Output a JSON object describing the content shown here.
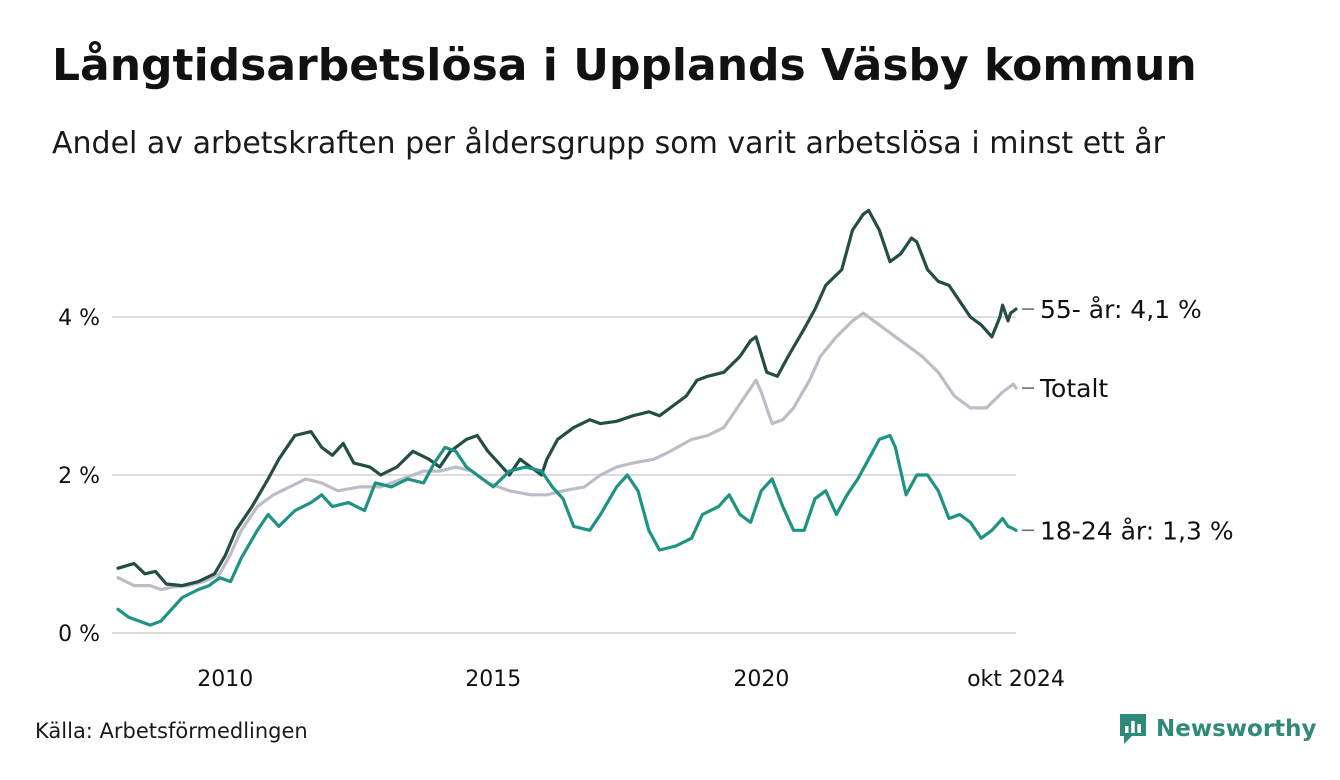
{
  "title": "Långtidsarbetslösa i Upplands Väsby kommun",
  "subtitle": "Andel av arbetskraften per åldersgrupp som varit arbetslösa i minst ett år",
  "source": "Källa: Arbetsförmedlingen",
  "brand": "Newsworthy",
  "colors": {
    "age55": "#234d45",
    "total": "#bdbcc8",
    "young": "#1e9384",
    "grid": "#dddddd",
    "brand": "#2f8a79"
  },
  "chart_data": {
    "type": "line",
    "title": "Långtidsarbetslösa i Upplands Väsby kommun",
    "xlabel": "",
    "ylabel": "",
    "ylim": [
      0,
      5.5
    ],
    "xlim": [
      2008.0,
      2024.75
    ],
    "y_ticks": [
      {
        "value": 0,
        "label": "0 %"
      },
      {
        "value": 2,
        "label": "2 %"
      },
      {
        "value": 4,
        "label": "4 %"
      }
    ],
    "x_ticks": [
      {
        "value": 2010,
        "label": "2010"
      },
      {
        "value": 2015,
        "label": "2015"
      },
      {
        "value": 2020,
        "label": "2020"
      },
      {
        "value": 2024.75,
        "label": "okt 2024"
      }
    ],
    "series": [
      {
        "name": "55- år",
        "label": "55- år: 4,1 %",
        "color_key": "age55",
        "points": [
          [
            2008.0,
            0.82
          ],
          [
            2008.3,
            0.88
          ],
          [
            2008.5,
            0.75
          ],
          [
            2008.7,
            0.78
          ],
          [
            2008.9,
            0.62
          ],
          [
            2009.2,
            0.6
          ],
          [
            2009.5,
            0.65
          ],
          [
            2009.8,
            0.75
          ],
          [
            2010.0,
            0.98
          ],
          [
            2010.2,
            1.3
          ],
          [
            2010.5,
            1.6
          ],
          [
            2010.8,
            1.95
          ],
          [
            2011.0,
            2.2
          ],
          [
            2011.3,
            2.5
          ],
          [
            2011.6,
            2.55
          ],
          [
            2011.8,
            2.35
          ],
          [
            2012.0,
            2.25
          ],
          [
            2012.2,
            2.4
          ],
          [
            2012.4,
            2.15
          ],
          [
            2012.7,
            2.1
          ],
          [
            2012.9,
            2.0
          ],
          [
            2013.2,
            2.1
          ],
          [
            2013.5,
            2.3
          ],
          [
            2013.8,
            2.2
          ],
          [
            2014.0,
            2.1
          ],
          [
            2014.2,
            2.3
          ],
          [
            2014.5,
            2.45
          ],
          [
            2014.7,
            2.5
          ],
          [
            2014.9,
            2.3
          ],
          [
            2015.1,
            2.15
          ],
          [
            2015.3,
            2.0
          ],
          [
            2015.5,
            2.2
          ],
          [
            2015.7,
            2.1
          ],
          [
            2015.9,
            2.0
          ],
          [
            2016.0,
            2.2
          ],
          [
            2016.2,
            2.45
          ],
          [
            2016.5,
            2.6
          ],
          [
            2016.8,
            2.7
          ],
          [
            2017.0,
            2.65
          ],
          [
            2017.3,
            2.68
          ],
          [
            2017.6,
            2.75
          ],
          [
            2017.9,
            2.8
          ],
          [
            2018.1,
            2.75
          ],
          [
            2018.3,
            2.85
          ],
          [
            2018.6,
            3.0
          ],
          [
            2018.8,
            3.2
          ],
          [
            2019.0,
            3.25
          ],
          [
            2019.3,
            3.3
          ],
          [
            2019.6,
            3.5
          ],
          [
            2019.8,
            3.7
          ],
          [
            2019.9,
            3.75
          ],
          [
            2020.1,
            3.3
          ],
          [
            2020.3,
            3.25
          ],
          [
            2020.5,
            3.5
          ],
          [
            2020.8,
            3.85
          ],
          [
            2021.0,
            4.1
          ],
          [
            2021.2,
            4.4
          ],
          [
            2021.5,
            4.6
          ],
          [
            2021.7,
            5.1
          ],
          [
            2021.9,
            5.3
          ],
          [
            2022.0,
            5.35
          ],
          [
            2022.2,
            5.1
          ],
          [
            2022.4,
            4.7
          ],
          [
            2022.6,
            4.8
          ],
          [
            2022.8,
            5.0
          ],
          [
            2022.9,
            4.95
          ],
          [
            2023.1,
            4.6
          ],
          [
            2023.3,
            4.45
          ],
          [
            2023.5,
            4.4
          ],
          [
            2023.7,
            4.2
          ],
          [
            2023.9,
            4.0
          ],
          [
            2024.1,
            3.9
          ],
          [
            2024.3,
            3.75
          ],
          [
            2024.45,
            4.0
          ],
          [
            2024.5,
            4.15
          ],
          [
            2024.6,
            3.95
          ],
          [
            2024.65,
            4.05
          ],
          [
            2024.75,
            4.1
          ]
        ]
      },
      {
        "name": "Totalt",
        "label": "Totalt",
        "color_key": "total",
        "points": [
          [
            2008.0,
            0.7
          ],
          [
            2008.3,
            0.6
          ],
          [
            2008.6,
            0.6
          ],
          [
            2008.8,
            0.55
          ],
          [
            2009.0,
            0.58
          ],
          [
            2009.3,
            0.6
          ],
          [
            2009.6,
            0.65
          ],
          [
            2009.9,
            0.75
          ],
          [
            2010.1,
            1.0
          ],
          [
            2010.3,
            1.3
          ],
          [
            2010.6,
            1.6
          ],
          [
            2010.9,
            1.75
          ],
          [
            2011.2,
            1.85
          ],
          [
            2011.5,
            1.95
          ],
          [
            2011.8,
            1.9
          ],
          [
            2012.1,
            1.8
          ],
          [
            2012.5,
            1.85
          ],
          [
            2012.9,
            1.85
          ],
          [
            2013.3,
            1.95
          ],
          [
            2013.7,
            2.05
          ],
          [
            2014.0,
            2.05
          ],
          [
            2014.3,
            2.1
          ],
          [
            2014.6,
            2.05
          ],
          [
            2014.9,
            1.9
          ],
          [
            2015.3,
            1.8
          ],
          [
            2015.7,
            1.75
          ],
          [
            2016.0,
            1.75
          ],
          [
            2016.3,
            1.8
          ],
          [
            2016.7,
            1.85
          ],
          [
            2017.0,
            2.0
          ],
          [
            2017.3,
            2.1
          ],
          [
            2017.6,
            2.15
          ],
          [
            2018.0,
            2.2
          ],
          [
            2018.3,
            2.3
          ],
          [
            2018.7,
            2.45
          ],
          [
            2019.0,
            2.5
          ],
          [
            2019.3,
            2.6
          ],
          [
            2019.6,
            2.9
          ],
          [
            2019.9,
            3.2
          ],
          [
            2020.0,
            3.05
          ],
          [
            2020.2,
            2.65
          ],
          [
            2020.4,
            2.7
          ],
          [
            2020.6,
            2.85
          ],
          [
            2020.9,
            3.2
          ],
          [
            2021.1,
            3.5
          ],
          [
            2021.4,
            3.75
          ],
          [
            2021.7,
            3.95
          ],
          [
            2021.9,
            4.05
          ],
          [
            2022.0,
            4.0
          ],
          [
            2022.2,
            3.9
          ],
          [
            2022.5,
            3.75
          ],
          [
            2022.8,
            3.6
          ],
          [
            2023.0,
            3.5
          ],
          [
            2023.3,
            3.3
          ],
          [
            2023.6,
            3.0
          ],
          [
            2023.9,
            2.85
          ],
          [
            2024.2,
            2.85
          ],
          [
            2024.5,
            3.05
          ],
          [
            2024.6,
            3.1
          ],
          [
            2024.7,
            3.15
          ],
          [
            2024.75,
            3.1
          ]
        ]
      },
      {
        "name": "18-24 år",
        "label": "18-24 år: 1,3 %",
        "color_key": "young",
        "points": [
          [
            2008.0,
            0.3
          ],
          [
            2008.2,
            0.2
          ],
          [
            2008.4,
            0.15
          ],
          [
            2008.6,
            0.1
          ],
          [
            2008.8,
            0.15
          ],
          [
            2009.0,
            0.3
          ],
          [
            2009.2,
            0.45
          ],
          [
            2009.5,
            0.55
          ],
          [
            2009.7,
            0.6
          ],
          [
            2009.9,
            0.7
          ],
          [
            2010.1,
            0.65
          ],
          [
            2010.3,
            0.95
          ],
          [
            2010.6,
            1.3
          ],
          [
            2010.8,
            1.5
          ],
          [
            2011.0,
            1.35
          ],
          [
            2011.3,
            1.55
          ],
          [
            2011.6,
            1.65
          ],
          [
            2011.8,
            1.75
          ],
          [
            2012.0,
            1.6
          ],
          [
            2012.3,
            1.65
          ],
          [
            2012.6,
            1.55
          ],
          [
            2012.8,
            1.9
          ],
          [
            2013.1,
            1.85
          ],
          [
            2013.4,
            1.95
          ],
          [
            2013.7,
            1.9
          ],
          [
            2013.9,
            2.15
          ],
          [
            2014.1,
            2.35
          ],
          [
            2014.3,
            2.3
          ],
          [
            2014.5,
            2.1
          ],
          [
            2014.8,
            1.95
          ],
          [
            2015.0,
            1.85
          ],
          [
            2015.3,
            2.05
          ],
          [
            2015.6,
            2.1
          ],
          [
            2015.9,
            2.05
          ],
          [
            2016.1,
            1.85
          ],
          [
            2016.3,
            1.7
          ],
          [
            2016.5,
            1.35
          ],
          [
            2016.8,
            1.3
          ],
          [
            2017.0,
            1.5
          ],
          [
            2017.3,
            1.85
          ],
          [
            2017.5,
            2.0
          ],
          [
            2017.7,
            1.8
          ],
          [
            2017.9,
            1.3
          ],
          [
            2018.1,
            1.05
          ],
          [
            2018.4,
            1.1
          ],
          [
            2018.7,
            1.2
          ],
          [
            2018.9,
            1.5
          ],
          [
            2019.2,
            1.6
          ],
          [
            2019.4,
            1.75
          ],
          [
            2019.6,
            1.5
          ],
          [
            2019.8,
            1.4
          ],
          [
            2020.0,
            1.8
          ],
          [
            2020.2,
            1.95
          ],
          [
            2020.4,
            1.6
          ],
          [
            2020.6,
            1.3
          ],
          [
            2020.8,
            1.3
          ],
          [
            2021.0,
            1.7
          ],
          [
            2021.2,
            1.8
          ],
          [
            2021.4,
            1.5
          ],
          [
            2021.6,
            1.75
          ],
          [
            2021.8,
            1.95
          ],
          [
            2022.0,
            2.2
          ],
          [
            2022.2,
            2.45
          ],
          [
            2022.4,
            2.5
          ],
          [
            2022.5,
            2.35
          ],
          [
            2022.7,
            1.75
          ],
          [
            2022.9,
            2.0
          ],
          [
            2023.1,
            2.0
          ],
          [
            2023.3,
            1.8
          ],
          [
            2023.5,
            1.45
          ],
          [
            2023.7,
            1.5
          ],
          [
            2023.9,
            1.4
          ],
          [
            2024.1,
            1.2
          ],
          [
            2024.3,
            1.3
          ],
          [
            2024.5,
            1.45
          ],
          [
            2024.6,
            1.35
          ],
          [
            2024.7,
            1.32
          ],
          [
            2024.75,
            1.3
          ]
        ]
      }
    ]
  }
}
